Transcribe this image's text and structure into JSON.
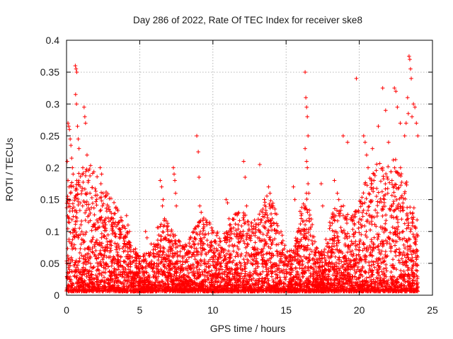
{
  "chart_data": {
    "type": "scatter",
    "title": "Day 286 of 2022, Rate Of TEC Index for receiver ske8",
    "xlabel": "GPS time / hours",
    "ylabel": "ROTI / TECUs",
    "xlim": [
      0,
      25
    ],
    "ylim": [
      0,
      0.4
    ],
    "xticks": [
      "0",
      "5",
      "10",
      "15",
      "20",
      "25"
    ],
    "yticks": [
      "0",
      "0.05",
      "0.1",
      "0.15",
      "0.2",
      "0.25",
      "0.3",
      "0.35",
      "0.4"
    ],
    "grid": true,
    "marker": "plus",
    "color": "#ff0000",
    "series": [
      {
        "x": [
          0.1,
          0.15,
          0.2,
          0.25,
          0.3,
          0.35,
          0.4,
          0.45,
          0.05,
          0.1,
          0.18,
          0.28,
          0.6,
          0.65,
          0.7,
          0.62,
          0.68,
          0.75,
          0.8,
          0.85,
          1.2,
          1.3,
          1.25,
          1.4,
          1.5,
          1.1,
          1.6,
          2.3,
          2.4,
          2.35,
          2.5,
          2.45,
          2.9,
          3.2,
          3.6,
          4.1,
          4.3,
          4.2,
          5.4,
          5.5,
          6.4,
          6.5,
          6.6,
          6.55,
          6.7,
          7.3,
          7.35,
          7.4,
          7.45,
          7.5,
          8.9,
          9.0,
          9.05,
          9.1,
          9.2,
          10.9,
          11.0,
          11.1,
          12.1,
          12.2,
          12.3,
          13.2,
          13.4,
          13.8,
          13.9,
          14.0,
          14.05,
          15.5,
          15.6,
          16.3,
          16.35,
          16.4,
          16.45,
          16.5,
          16.3,
          16.4,
          16.45,
          16.5,
          16.55,
          17.4,
          17.5,
          18.3,
          18.5,
          18.6,
          18.9,
          19.2,
          19.8,
          20.3,
          20.4,
          20.5,
          20.6,
          20.9,
          21.0,
          21.3,
          21.6,
          21.8,
          22.0,
          22.4,
          22.5,
          22.6,
          22.8,
          23.1,
          23.2,
          23.3,
          23.35,
          23.4,
          23.45,
          23.5,
          23.55,
          23.6,
          23.7,
          23.8,
          23.9,
          24.0,
          0.8,
          1.0,
          2.0,
          3.0,
          4.0,
          5.0,
          6.0,
          7.0,
          8.0,
          9.0,
          10.0,
          11.0,
          12.0,
          13.0,
          14.0,
          15.0,
          16.0,
          17.0,
          18.0,
          19.0,
          20.0,
          21.0,
          22.0,
          23.0,
          24.0
        ],
        "y": [
          0.27,
          0.265,
          0.26,
          0.245,
          0.235,
          0.215,
          0.2,
          0.19,
          0.21,
          0.18,
          0.17,
          0.16,
          0.36,
          0.355,
          0.35,
          0.315,
          0.3,
          0.265,
          0.245,
          0.23,
          0.295,
          0.27,
          0.28,
          0.22,
          0.18,
          0.14,
          0.16,
          0.2,
          0.19,
          0.175,
          0.16,
          0.14,
          0.135,
          0.12,
          0.115,
          0.125,
          0.1,
          0.11,
          0.1,
          0.09,
          0.18,
          0.17,
          0.15,
          0.14,
          0.12,
          0.2,
          0.19,
          0.18,
          0.16,
          0.14,
          0.25,
          0.225,
          0.185,
          0.14,
          0.13,
          0.15,
          0.145,
          0.12,
          0.21,
          0.185,
          0.14,
          0.205,
          0.13,
          0.17,
          0.16,
          0.14,
          0.12,
          0.17,
          0.15,
          0.35,
          0.31,
          0.295,
          0.28,
          0.25,
          0.23,
          0.21,
          0.2,
          0.175,
          0.16,
          0.175,
          0.14,
          0.18,
          0.16,
          0.15,
          0.25,
          0.24,
          0.34,
          0.25,
          0.24,
          0.22,
          0.2,
          0.23,
          0.18,
          0.265,
          0.325,
          0.29,
          0.24,
          0.325,
          0.32,
          0.295,
          0.27,
          0.25,
          0.27,
          0.31,
          0.285,
          0.375,
          0.37,
          0.355,
          0.34,
          0.28,
          0.3,
          0.295,
          0.27,
          0.25,
          0.09,
          0.08,
          0.07,
          0.06,
          0.07,
          0.05,
          0.06,
          0.05,
          0.04,
          0.05,
          0.06,
          0.05,
          0.04,
          0.05,
          0.08,
          0.04,
          0.06,
          0.05,
          0.04,
          0.06,
          0.07,
          0.08,
          0.09,
          0.1,
          0.06
        ]
      }
    ],
    "noise_note": ""
  }
}
